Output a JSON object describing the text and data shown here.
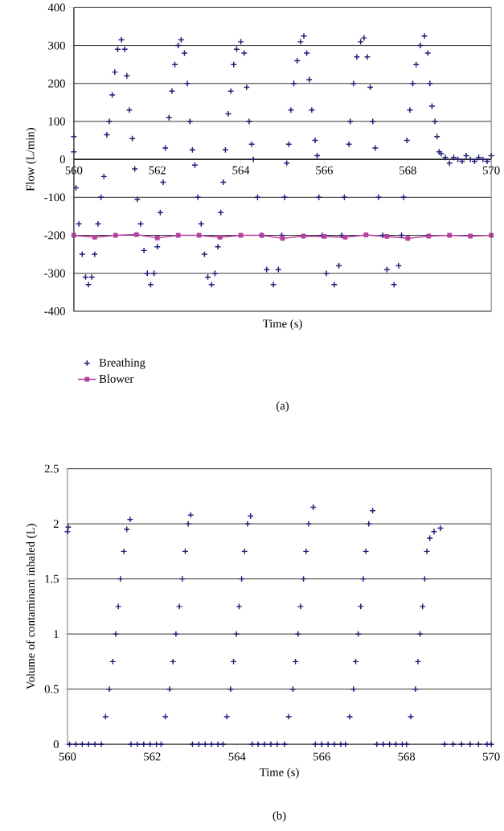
{
  "chart_data": [
    {
      "type": "scatter",
      "xlabel": "Time (s)",
      "ylabel": "Flow (L/min)",
      "xlim": [
        560,
        570
      ],
      "ylim": [
        -400,
        400
      ],
      "xticks": [
        560,
        562,
        564,
        566,
        568,
        570
      ],
      "yticks": [
        -400,
        -300,
        -200,
        -100,
        0,
        100,
        200,
        300,
        400
      ],
      "grid": "y",
      "legend": "bottom",
      "annotations": [
        "(a)"
      ],
      "series": [
        {
          "name": "Breathing",
          "marker": "cross",
          "color": "#1f1f7a",
          "x": [
            560.0,
            560.0,
            560.05,
            560.12,
            560.2,
            560.28,
            560.35,
            560.43,
            560.5,
            560.58,
            560.65,
            560.72,
            560.79,
            560.85,
            560.92,
            560.98,
            561.05,
            561.14,
            561.22,
            561.27,
            561.33,
            561.4,
            561.46,
            561.52,
            561.6,
            561.68,
            561.76,
            561.84,
            561.92,
            562.0,
            562.07,
            562.14,
            562.19,
            562.28,
            562.35,
            562.42,
            562.5,
            562.57,
            562.65,
            562.72,
            562.78,
            562.84,
            562.9,
            562.97,
            563.05,
            563.13,
            563.21,
            563.3,
            563.38,
            563.45,
            563.52,
            563.58,
            563.63,
            563.7,
            563.76,
            563.83,
            563.9,
            564.0,
            564.08,
            564.14,
            564.2,
            564.26,
            564.3,
            564.4,
            564.5,
            564.62,
            564.78,
            564.9,
            564.98,
            565.05,
            565.1,
            565.15,
            565.2,
            565.27,
            565.35,
            565.43,
            565.51,
            565.58,
            565.64,
            565.7,
            565.78,
            565.83,
            565.87,
            565.95,
            566.05,
            566.24,
            566.35,
            566.42,
            566.48,
            566.59,
            566.62,
            566.7,
            566.78,
            566.87,
            566.95,
            567.03,
            567.1,
            567.16,
            567.22,
            567.3,
            567.4,
            567.5,
            567.67,
            567.78,
            567.85,
            567.9,
            567.98,
            568.05,
            568.12,
            568.2,
            568.3,
            568.4,
            568.48,
            568.53,
            568.58,
            568.65,
            568.7,
            568.75,
            568.8,
            568.9,
            569.0,
            569.1,
            569.2,
            569.3,
            569.4,
            569.5,
            569.6,
            569.7,
            569.8,
            569.9,
            570.0
          ],
          "values": [
            60,
            20,
            -75,
            -170,
            -250,
            -310,
            -330,
            -310,
            -250,
            -170,
            -100,
            -45,
            65,
            100,
            170,
            230,
            290,
            315,
            290,
            220,
            130,
            55,
            -25,
            -105,
            -170,
            -240,
            -300,
            -330,
            -300,
            -230,
            -140,
            -60,
            30,
            110,
            180,
            250,
            300,
            315,
            280,
            200,
            100,
            25,
            -15,
            -100,
            -170,
            -250,
            -310,
            -330,
            -300,
            -230,
            -140,
            -60,
            25,
            120,
            180,
            250,
            290,
            310,
            280,
            190,
            100,
            40,
            0,
            -100,
            -200,
            -290,
            -330,
            -290,
            -200,
            -100,
            -10,
            40,
            130,
            200,
            260,
            310,
            325,
            280,
            210,
            130,
            50,
            10,
            -100,
            -200,
            -300,
            -330,
            -280,
            -200,
            -100,
            40,
            100,
            200,
            270,
            310,
            320,
            270,
            190,
            100,
            30,
            -100,
            -200,
            -290,
            -330,
            -280,
            -200,
            -100,
            50,
            130,
            200,
            250,
            300,
            325,
            280,
            200,
            140,
            100,
            60,
            20,
            15,
            5,
            -10,
            5,
            0,
            -5,
            10,
            0,
            -5,
            5,
            0,
            -5,
            10
          ]
        },
        {
          "name": "Blower",
          "type": "line",
          "marker": "square",
          "color": "#b5409e",
          "x": [
            560,
            560.5,
            561,
            561.5,
            562,
            562.5,
            563,
            563.5,
            564,
            564.5,
            565,
            565.5,
            566,
            566.5,
            567,
            567.5,
            568,
            568.5,
            569,
            569.5,
            570
          ],
          "values": [
            -200,
            -205,
            -200,
            -198,
            -207,
            -200,
            -200,
            -205,
            -200,
            -200,
            -208,
            -202,
            -203,
            -205,
            -199,
            -203,
            -208,
            -202,
            -200,
            -202,
            -200
          ]
        }
      ]
    },
    {
      "type": "scatter",
      "xlabel": "Time (s)",
      "ylabel": "Volume of contaminant inhaled (L)",
      "xlim": [
        560,
        570
      ],
      "ylim": [
        0,
        2.5
      ],
      "xticks": [
        560,
        562,
        564,
        566,
        568,
        570
      ],
      "yticks": [
        0,
        0.5,
        1,
        1.5,
        2,
        2.5
      ],
      "grid": "y",
      "annotations": [
        "(b)"
      ],
      "series": [
        {
          "marker": "cross",
          "color": "#1f1f7a",
          "x": [
            560.0,
            560.02,
            560.05,
            560.2,
            560.35,
            560.5,
            560.65,
            560.8,
            560.9,
            560.99,
            561.07,
            561.14,
            561.2,
            561.25,
            561.33,
            561.4,
            561.48,
            561.5,
            561.65,
            561.8,
            561.95,
            562.1,
            562.21,
            562.31,
            562.41,
            562.49,
            562.56,
            562.64,
            562.71,
            562.78,
            562.85,
            562.91,
            562.95,
            563.1,
            563.25,
            563.4,
            563.55,
            563.67,
            563.76,
            563.85,
            563.92,
            563.99,
            564.05,
            564.11,
            564.18,
            564.25,
            564.32,
            564.36,
            564.5,
            564.65,
            564.8,
            564.95,
            565.12,
            565.22,
            565.32,
            565.38,
            565.44,
            565.5,
            565.57,
            565.63,
            565.69,
            565.8,
            565.85,
            566.0,
            566.15,
            566.3,
            566.45,
            566.56,
            566.66,
            566.75,
            566.8,
            566.86,
            566.92,
            566.98,
            567.04,
            567.11,
            567.2,
            567.3,
            567.45,
            567.6,
            567.75,
            567.9,
            568.0,
            568.1,
            568.21,
            568.27,
            568.32,
            568.38,
            568.43,
            568.48,
            568.55,
            568.65,
            568.8,
            568.9,
            569.1,
            569.3,
            569.5,
            569.7,
            569.9,
            570.0
          ],
          "values": [
            1.93,
            1.97,
            0,
            0,
            0,
            0,
            0,
            0,
            0.25,
            0.5,
            0.75,
            1.0,
            1.25,
            1.5,
            1.75,
            1.95,
            2.04,
            0,
            0,
            0,
            0,
            0,
            0,
            0.25,
            0.5,
            0.75,
            1.0,
            1.25,
            1.5,
            1.75,
            2.0,
            2.08,
            0,
            0,
            0,
            0,
            0,
            0,
            0.25,
            0.5,
            0.75,
            1.0,
            1.25,
            1.5,
            1.75,
            2.0,
            2.07,
            0,
            0,
            0,
            0,
            0,
            0,
            0.25,
            0.5,
            0.75,
            1.0,
            1.25,
            1.5,
            1.75,
            2.0,
            2.15,
            0,
            0,
            0,
            0,
            0,
            0,
            0.25,
            0.5,
            0.75,
            1.0,
            1.25,
            1.5,
            1.75,
            2.0,
            2.12,
            0,
            0,
            0,
            0,
            0,
            0,
            0.25,
            0.5,
            0.75,
            1.0,
            1.25,
            1.5,
            1.75,
            1.87,
            1.93,
            1.96,
            0,
            0,
            0,
            0,
            0,
            0,
            0
          ]
        }
      ]
    }
  ]
}
